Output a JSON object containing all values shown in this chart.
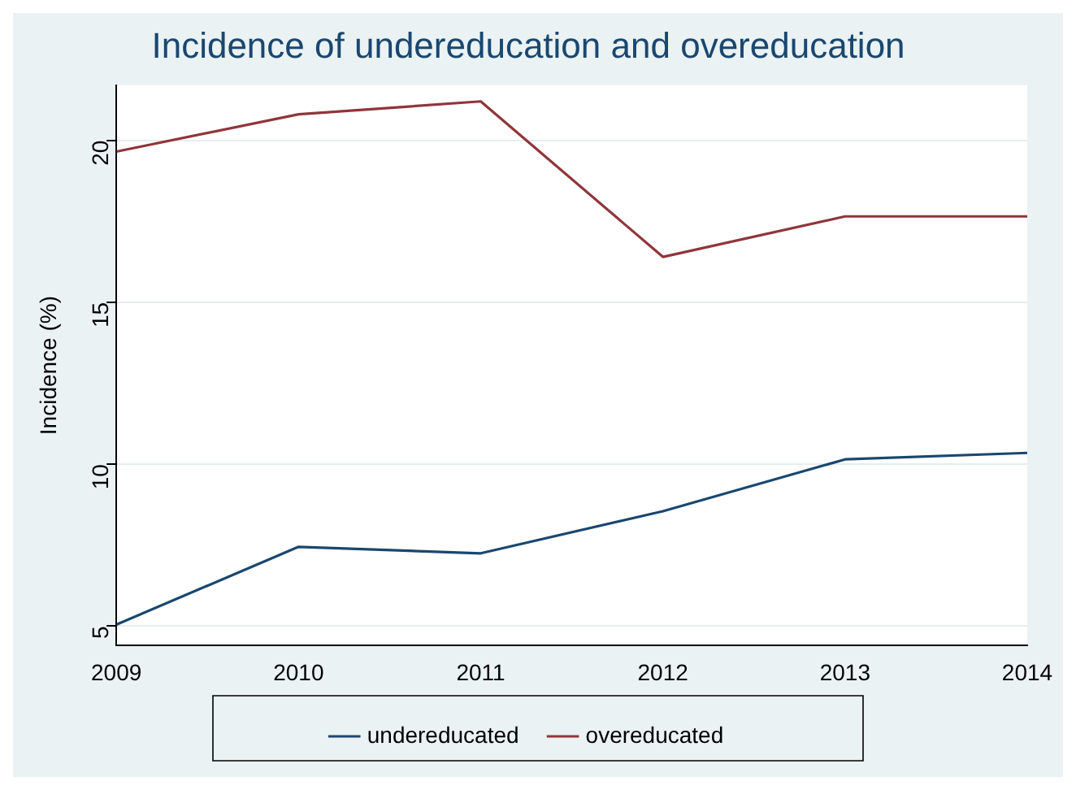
{
  "chart_data": {
    "type": "line",
    "title": "Incidence of undereducation and overeducation",
    "ylabel": "Incidence (%)",
    "x": [
      2009,
      2010,
      2011,
      2012,
      2013,
      2014
    ],
    "series": [
      {
        "name": "undereducated",
        "color": "#1a476f",
        "values": [
          5.05,
          7.45,
          7.25,
          8.55,
          10.15,
          10.35
        ]
      },
      {
        "name": "overeducated",
        "color": "#90353b",
        "values": [
          19.65,
          20.8,
          21.2,
          16.4,
          17.65,
          17.65
        ]
      }
    ],
    "xlim": [
      2009,
      2014
    ],
    "xticks": [
      2009,
      2010,
      2011,
      2012,
      2013,
      2014
    ],
    "ylim": [
      4.4,
      21.7
    ],
    "yticks": [
      5,
      10,
      15,
      20
    ],
    "grid": "y",
    "legend": "bottom",
    "marker": "none",
    "line_style": "solid"
  }
}
